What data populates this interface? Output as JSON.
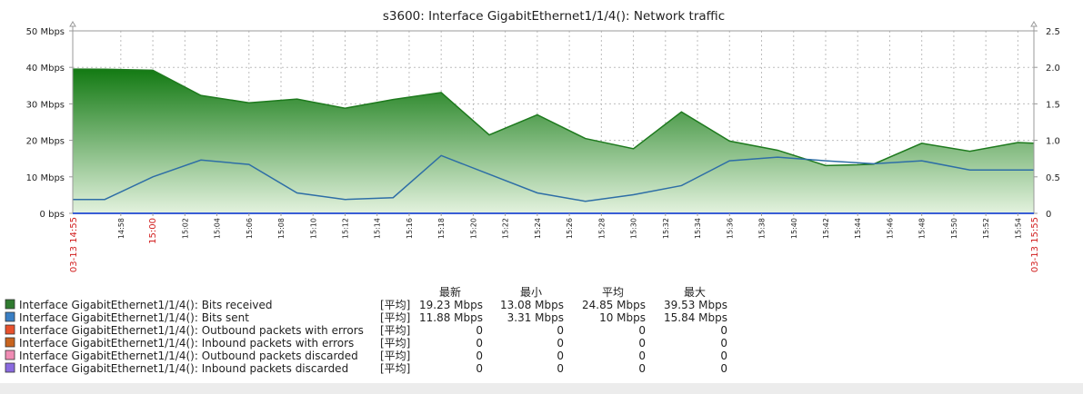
{
  "chart_data": {
    "type": "area",
    "title": "s3600: Interface GigabitEthernet1/1/4(): Network traffic",
    "ylabel": "",
    "xlabel": "",
    "ylim": [
      0,
      50
    ],
    "y2lim": [
      0,
      2.5
    ],
    "grid": true,
    "yticks": [
      "0 bps",
      "10 Mbps",
      "20 Mbps",
      "30 Mbps",
      "40 Mbps",
      "50 Mbps"
    ],
    "y2ticks": [
      "0",
      "0.5",
      "1.0",
      "1.5",
      "2.0",
      "2.5"
    ],
    "x_start_label": "03-13 14:55",
    "x_end_label": "03-13 15:55",
    "x_range": [
      "14:55",
      "15:55"
    ],
    "xticks": [
      "14:58",
      "15:00",
      "15:02",
      "15:04",
      "15:06",
      "15:08",
      "15:10",
      "15:12",
      "15:14",
      "15:16",
      "15:18",
      "15:20",
      "15:22",
      "15:24",
      "15:26",
      "15:28",
      "15:30",
      "15:32",
      "15:34",
      "15:36",
      "15:38",
      "15:40",
      "15:42",
      "15:44",
      "15:46",
      "15:48",
      "15:50",
      "15:52",
      "15:54"
    ],
    "highlight_ticks": [
      "15:00"
    ],
    "series": [
      {
        "name": "Interface GigabitEthernet1/1/4(): Bits received",
        "color": "#1e7a1e",
        "style": "area",
        "x": [
          "14:55",
          "14:57",
          "15:00",
          "15:03",
          "15:06",
          "15:09",
          "15:12",
          "15:15",
          "15:18",
          "15:21",
          "15:24",
          "15:27",
          "15:30",
          "15:33",
          "15:36",
          "15:39",
          "15:42",
          "15:44",
          "15:45",
          "15:48",
          "15:51",
          "15:54",
          "15:55"
        ],
        "values": [
          39.53,
          39.5,
          39.2,
          32.3,
          30.3,
          31.3,
          28.8,
          31.2,
          33.1,
          21.5,
          27.0,
          20.5,
          17.7,
          27.8,
          19.8,
          17.3,
          13.1,
          13.3,
          13.5,
          19.2,
          17.0,
          19.4,
          19.23
        ]
      },
      {
        "name": "Interface GigabitEthernet1/1/4(): Bits sent",
        "color": "#2e6ea6",
        "style": "line",
        "x": [
          "14:55",
          "14:57",
          "15:00",
          "15:03",
          "15:06",
          "15:09",
          "15:12",
          "15:15",
          "15:18",
          "15:21",
          "15:24",
          "15:27",
          "15:30",
          "15:33",
          "15:36",
          "15:39",
          "15:42",
          "15:45",
          "15:48",
          "15:51",
          "15:54",
          "15:55"
        ],
        "values": [
          3.8,
          3.8,
          10.0,
          14.6,
          13.4,
          5.6,
          3.8,
          4.3,
          15.84,
          10.7,
          5.6,
          3.31,
          5.1,
          7.6,
          14.4,
          15.4,
          14.4,
          13.6,
          14.4,
          11.88,
          11.88,
          11.88
        ]
      }
    ],
    "legend": {
      "headers": [
        "最新",
        "最小",
        "平均",
        "最大"
      ],
      "func_label": "[平均]",
      "items": [
        {
          "name": "Interface GigabitEthernet1/1/4(): Bits received",
          "color": "#2f7a2f",
          "values": [
            "19.23 Mbps",
            "13.08 Mbps",
            "24.85 Mbps",
            "39.53 Mbps"
          ]
        },
        {
          "name": "Interface GigabitEthernet1/1/4(): Bits sent",
          "color": "#3a7fc4",
          "values": [
            "11.88 Mbps",
            "3.31 Mbps",
            "10 Mbps",
            "15.84 Mbps"
          ]
        },
        {
          "name": "Interface GigabitEthernet1/1/4(): Outbound packets with errors",
          "color": "#e8512c",
          "values": [
            "0",
            "0",
            "0",
            "0"
          ]
        },
        {
          "name": "Interface GigabitEthernet1/1/4(): Inbound packets with errors",
          "color": "#c8641e",
          "values": [
            "0",
            "0",
            "0",
            "0"
          ]
        },
        {
          "name": "Interface GigabitEthernet1/1/4(): Outbound packets discarded",
          "color": "#f08cb4",
          "values": [
            "0",
            "0",
            "0",
            "0"
          ]
        },
        {
          "name": "Interface GigabitEthernet1/1/4(): Inbound packets discarded",
          "color": "#8a6ae0",
          "values": [
            "0",
            "0",
            "0",
            "0"
          ]
        }
      ]
    }
  }
}
